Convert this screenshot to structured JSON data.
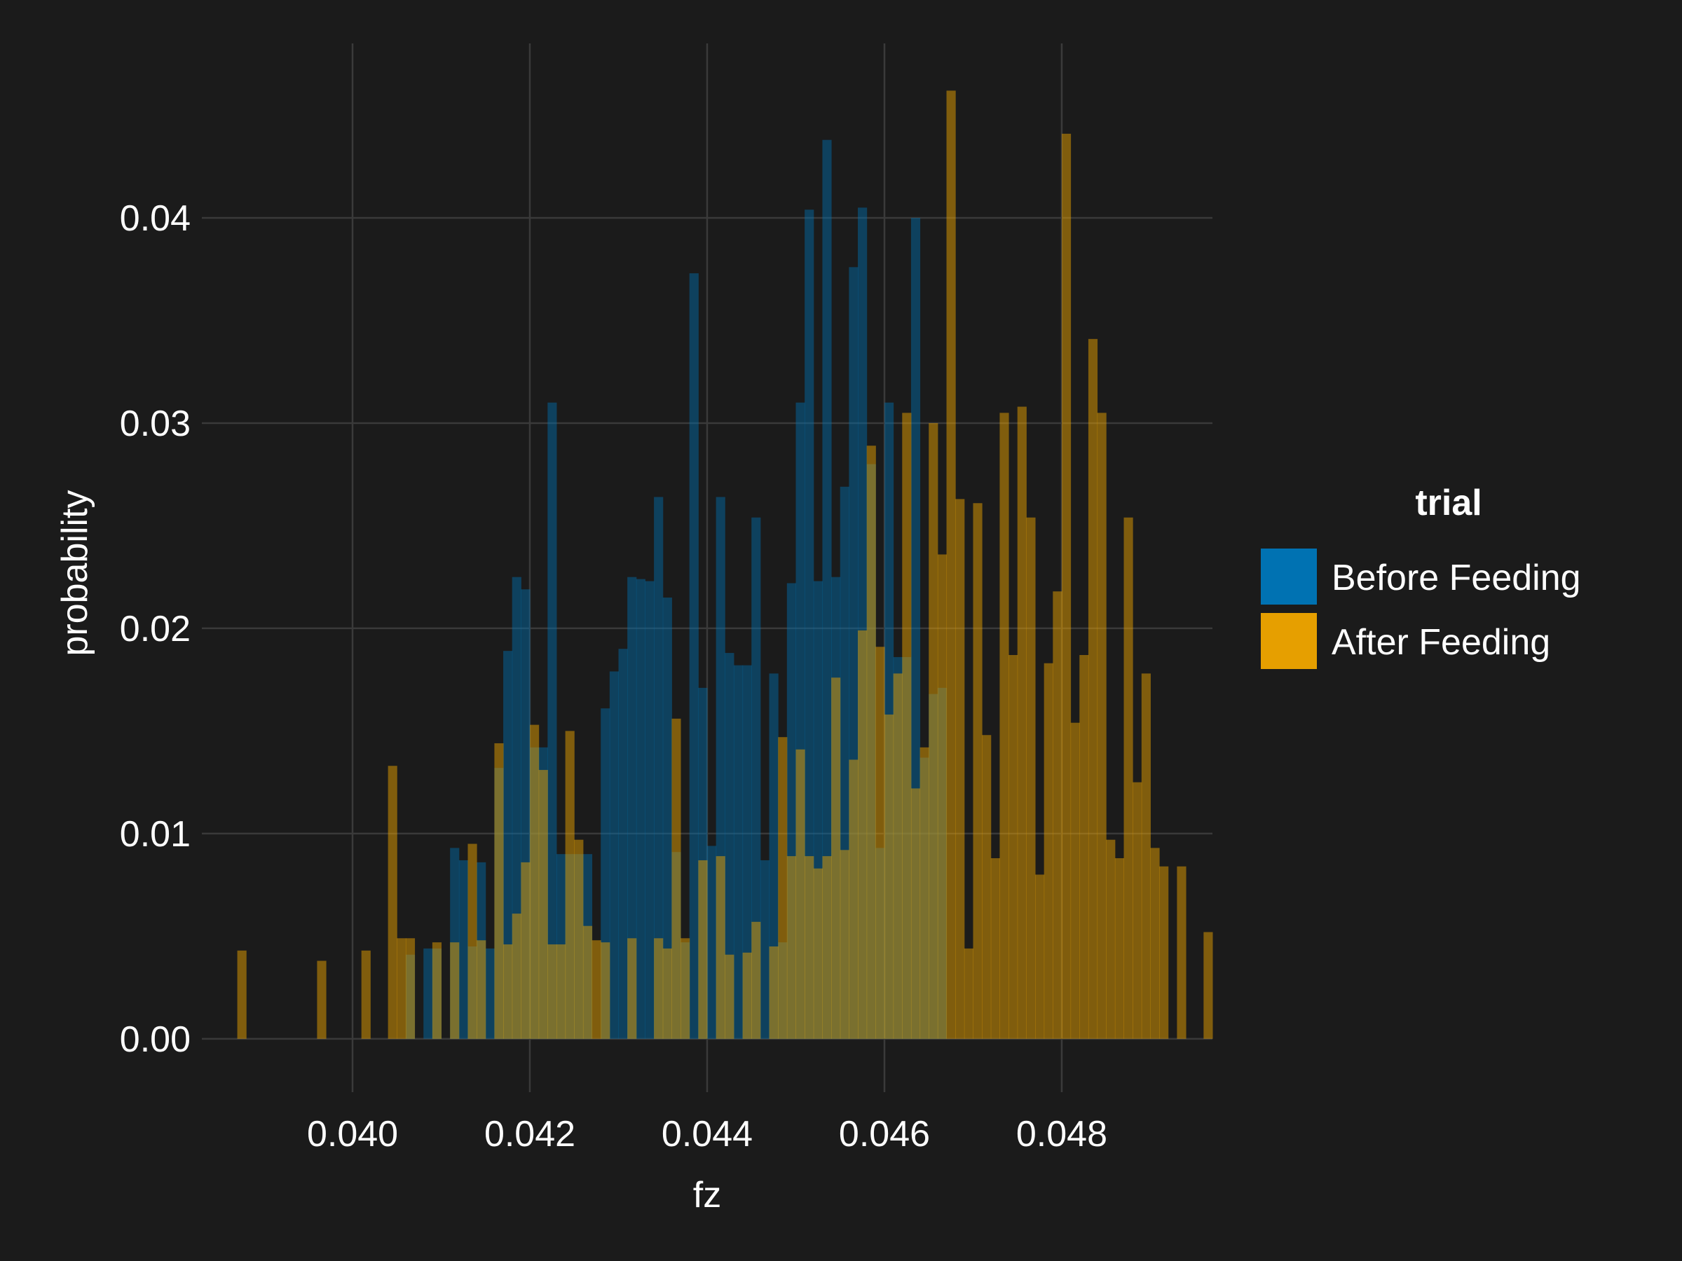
{
  "chart_data": {
    "type": "histogram",
    "title": "",
    "xlabel": "fz",
    "ylabel": "probability",
    "xlim": [
      0.0383,
      0.0497
    ],
    "ylim": [
      -0.0026,
      0.0485
    ],
    "x_ticks": [
      0.04,
      0.042,
      0.044,
      0.046,
      0.048
    ],
    "x_tick_labels": [
      "0.040",
      "0.042",
      "0.044",
      "0.046",
      "0.048"
    ],
    "y_ticks": [
      0.0,
      0.01,
      0.02,
      0.03,
      0.04
    ],
    "y_tick_labels": [
      "0.00",
      "0.01",
      "0.02",
      "0.03",
      "0.04"
    ],
    "grid": true,
    "legend": {
      "title": "trial",
      "position": "right"
    },
    "bin_width": 0.0001,
    "series": [
      {
        "name": "Before Feeding",
        "color": "#0072B2",
        "opacity": 0.45,
        "bin_start": 0.0406,
        "values": [
          0.0041,
          0,
          0.0044,
          0.0044,
          0,
          0.0093,
          0.0087,
          0.0045,
          0.0086,
          0.0044,
          0.0132,
          0.0189,
          0.0225,
          0.0219,
          0.0142,
          0.0142,
          0.031,
          0.009,
          0.009,
          0.009,
          0.009,
          0,
          0.0161,
          0.0179,
          0.019,
          0.0225,
          0.0224,
          0.0223,
          0.0264,
          0.0215,
          0.0091,
          0.0047,
          0.0373,
          0.0171,
          0.0094,
          0.0264,
          0.0188,
          0.0182,
          0.0182,
          0.0254,
          0.0087,
          0.0178,
          0.0047,
          0.0222,
          0.031,
          0.0404,
          0.0223,
          0.0438,
          0.0225,
          0.0269,
          0.0376,
          0.0405,
          0.028,
          0.0093,
          0.031,
          0.0186,
          0.0186,
          0.04,
          0.0137,
          0.0168,
          0.0171
        ]
      },
      {
        "name": "After Feeding",
        "color": "#E69F00",
        "opacity": 0.5,
        "bin_start": 0.0387,
        "values": [
          0.0043,
          0,
          0,
          0,
          0,
          0,
          0,
          0,
          0,
          0.0038,
          0,
          0,
          0,
          0,
          0.0043,
          0,
          0,
          0.0133,
          0.0049,
          0.0049,
          0,
          0,
          0.0047,
          0,
          0.0047,
          0,
          0.0095,
          0.0048,
          0,
          0.0144,
          0.0046,
          0.0061,
          0.0086,
          0.0153,
          0.0131,
          0.0046,
          0.0046,
          0.015,
          0.0097,
          0.0055,
          0.0048,
          0.0047,
          0,
          0,
          0.0049,
          0,
          0,
          0.0049,
          0.0044,
          0.0156,
          0.0049,
          0,
          0.0087,
          0,
          0.0089,
          0.0041,
          0,
          0.0042,
          0.0057,
          0,
          0.0045,
          0.0147,
          0.0089,
          0.0141,
          0.0089,
          0.0083,
          0.0089,
          0.0176,
          0.0092,
          0.0136,
          0.0199,
          0.0289,
          0.0191,
          0.0158,
          0.0178,
          0.0305,
          0.0122,
          0.0142,
          0.03,
          0.0236,
          0.0462,
          0.0263,
          0.0044,
          0.0261,
          0.0148,
          0.0088,
          0.0305,
          0.0187,
          0.0308,
          0.0254,
          0.008,
          0.0183,
          0.0218,
          0.0441,
          0.0154,
          0.0187,
          0.0341,
          0.0305,
          0.0097,
          0.0088,
          0.0254,
          0.0125,
          0.0178,
          0.0093,
          0.0084,
          0,
          0.0084,
          0,
          0,
          0.0052
        ]
      }
    ]
  }
}
